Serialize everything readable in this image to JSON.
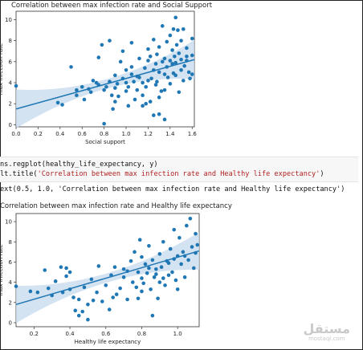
{
  "charts": [
    {
      "title": "Correlation between max infection rate and Social Support",
      "xlabel": "Social support",
      "ylabel": "max infection rate",
      "xticks": [
        "0.0",
        "0.2",
        "0.4",
        "0.6",
        "0.8",
        "1.0",
        "1.2",
        "1.4",
        "1.6"
      ],
      "yticks": [
        "0",
        "2",
        "4",
        "6",
        "8",
        "10"
      ]
    },
    {
      "title": "Correlation between max infection rate and Healthy life expectancy",
      "xlabel": "Healthy life expectancy",
      "ylabel": "max infection rate",
      "xticks": [
        "0.2",
        "0.4",
        "0.6",
        "0.8",
        "1.0"
      ],
      "yticks": [
        "0",
        "2",
        "4",
        "6",
        "8",
        "10"
      ]
    }
  ],
  "code": {
    "line1": "ns.regplot(healthy_life_expectancy, y)",
    "line2_prefix": "lt.title(",
    "line2_string": "'Correlation between max infection rate and Healthy life expectancy'",
    "line2_suffix": ")",
    "output": "ext(0.5, 1.0, 'Correlation between max infection rate and Healthy life expectancy')"
  },
  "watermark": {
    "main": "مستقل",
    "sub": "mostaql.com"
  },
  "colors": {
    "points": "#1f77b4",
    "ci_band": "#c9dcee"
  },
  "chart_data": [
    {
      "type": "scatter",
      "title": "Correlation between max infection rate and Social Support",
      "xlabel": "Social support",
      "ylabel": "max infection rate",
      "xlim": [
        0,
        1.62
      ],
      "ylim": [
        -0.2,
        10.8
      ],
      "regression": {
        "x": [
          0,
          1.62
        ],
        "y": [
          1.5,
          6.2
        ]
      },
      "points": [
        [
          0.0,
          3.7
        ],
        [
          0.38,
          2.1
        ],
        [
          0.42,
          1.9
        ],
        [
          0.5,
          5.5
        ],
        [
          0.55,
          2.8
        ],
        [
          0.55,
          3.3
        ],
        [
          0.6,
          3.6
        ],
        [
          0.62,
          2.4
        ],
        [
          0.66,
          3.4
        ],
        [
          0.7,
          4.2
        ],
        [
          0.73,
          4.0
        ],
        [
          0.75,
          3.8
        ],
        [
          0.75,
          6.4
        ],
        [
          0.78,
          7.6
        ],
        [
          0.8,
          3.3
        ],
        [
          0.82,
          3.6
        ],
        [
          0.85,
          4.1
        ],
        [
          0.85,
          8.0
        ],
        [
          0.87,
          2.8
        ],
        [
          0.88,
          1.5
        ],
        [
          0.9,
          2.2
        ],
        [
          0.9,
          3.5
        ],
        [
          0.9,
          4.7
        ],
        [
          0.93,
          2.7
        ],
        [
          0.95,
          6.0
        ],
        [
          0.97,
          4.4
        ],
        [
          0.97,
          7.0
        ],
        [
          1.0,
          3.2
        ],
        [
          1.0,
          4.0
        ],
        [
          1.0,
          5.2
        ],
        [
          1.02,
          1.8
        ],
        [
          1.02,
          3.6
        ],
        [
          1.05,
          5.5
        ],
        [
          1.05,
          7.8
        ],
        [
          1.07,
          4.1
        ],
        [
          1.08,
          2.4
        ],
        [
          1.1,
          3.3
        ],
        [
          1.1,
          4.6
        ],
        [
          1.12,
          6.3
        ],
        [
          1.15,
          1.8
        ],
        [
          1.15,
          4.0
        ],
        [
          1.15,
          2.8
        ],
        [
          1.17,
          5.4
        ],
        [
          1.18,
          3.6
        ],
        [
          1.2,
          4.2
        ],
        [
          1.2,
          6.1
        ],
        [
          1.2,
          7.2
        ],
        [
          1.22,
          2.2
        ],
        [
          1.22,
          6.5
        ],
        [
          1.23,
          4.4
        ],
        [
          1.25,
          5.2
        ],
        [
          1.25,
          8.1
        ],
        [
          1.27,
          3.8
        ],
        [
          1.28,
          6.7
        ],
        [
          1.28,
          4.1
        ],
        [
          1.3,
          1.0
        ],
        [
          1.3,
          5.0
        ],
        [
          1.3,
          7.4
        ],
        [
          1.3,
          2.6
        ],
        [
          1.32,
          3.2
        ],
        [
          1.33,
          6.0
        ],
        [
          1.33,
          9.4
        ],
        [
          1.35,
          4.8
        ],
        [
          1.35,
          6.3
        ],
        [
          1.35,
          0.5
        ],
        [
          1.37,
          5.5
        ],
        [
          1.37,
          7.9
        ],
        [
          1.38,
          4.5
        ],
        [
          1.4,
          6.1
        ],
        [
          1.4,
          8.5
        ],
        [
          1.4,
          3.9
        ],
        [
          1.42,
          5.8
        ],
        [
          1.42,
          7.1
        ],
        [
          1.43,
          9.1
        ],
        [
          1.44,
          6.5
        ],
        [
          1.45,
          4.7
        ],
        [
          1.45,
          5.9
        ],
        [
          1.46,
          7.6
        ],
        [
          1.47,
          9.0
        ],
        [
          1.48,
          3.1
        ],
        [
          1.48,
          6.8
        ],
        [
          1.5,
          5.2
        ],
        [
          1.5,
          6.2
        ],
        [
          1.5,
          8.0
        ],
        [
          1.52,
          4.2
        ],
        [
          1.52,
          9.1
        ],
        [
          1.53,
          5.6
        ],
        [
          1.55,
          7.3
        ],
        [
          1.55,
          6.1
        ],
        [
          1.57,
          5.0
        ],
        [
          1.58,
          4.4
        ],
        [
          1.6,
          6.6
        ],
        [
          1.6,
          8.2
        ],
        [
          1.45,
          10.2
        ],
        [
          1.35,
          3.3
        ],
        [
          1.27,
          5.8
        ],
        [
          1.18,
          2.0
        ],
        [
          1.05,
          4.8
        ],
        [
          0.92,
          3.9
        ],
        [
          0.68,
          3.1
        ],
        [
          1.12,
          4.5
        ],
        [
          1.43,
          4.9
        ],
        [
          1.55,
          6.5
        ],
        [
          1.25,
          0.9
        ],
        [
          0.8,
          0.1
        ],
        [
          1.6,
          4.8
        ]
      ]
    },
    {
      "type": "scatter",
      "title": "Correlation between max infection rate and Healthy life expectancy",
      "xlabel": "Healthy life expectancy",
      "ylabel": "max infection rate",
      "xlim": [
        0.1,
        1.12
      ],
      "ylim": [
        -0.4,
        10.8
      ],
      "regression": {
        "x": [
          0.1,
          1.12
        ],
        "y": [
          1.8,
          7.1
        ]
      },
      "points": [
        [
          0.1,
          3.6
        ],
        [
          0.18,
          3.1
        ],
        [
          0.22,
          3.0
        ],
        [
          0.26,
          5.2
        ],
        [
          0.28,
          3.4
        ],
        [
          0.3,
          2.7
        ],
        [
          0.32,
          4.1
        ],
        [
          0.35,
          5.5
        ],
        [
          0.36,
          3.0
        ],
        [
          0.38,
          4.6
        ],
        [
          0.38,
          5.4
        ],
        [
          0.4,
          3.3
        ],
        [
          0.4,
          5.0
        ],
        [
          0.42,
          2.5
        ],
        [
          0.43,
          1.2
        ],
        [
          0.45,
          2.3
        ],
        [
          0.45,
          0.7
        ],
        [
          0.47,
          1.1
        ],
        [
          0.48,
          3.5
        ],
        [
          0.5,
          1.8
        ],
        [
          0.5,
          0.3
        ],
        [
          0.52,
          4.3
        ],
        [
          0.53,
          2.2
        ],
        [
          0.55,
          3.0
        ],
        [
          0.56,
          5.6
        ],
        [
          0.58,
          2.1
        ],
        [
          0.6,
          3.7
        ],
        [
          0.62,
          1.3
        ],
        [
          0.63,
          4.7
        ],
        [
          0.65,
          5.5
        ],
        [
          0.66,
          2.8
        ],
        [
          0.68,
          3.4
        ],
        [
          0.7,
          4.5
        ],
        [
          0.72,
          5.1
        ],
        [
          0.72,
          2.3
        ],
        [
          0.74,
          6.1
        ],
        [
          0.75,
          4.0
        ],
        [
          0.76,
          7.0
        ],
        [
          0.77,
          3.5
        ],
        [
          0.78,
          5.0
        ],
        [
          0.79,
          8.2
        ],
        [
          0.8,
          4.4
        ],
        [
          0.8,
          6.5
        ],
        [
          0.81,
          3.9
        ],
        [
          0.82,
          5.8
        ],
        [
          0.83,
          4.9
        ],
        [
          0.84,
          7.6
        ],
        [
          0.85,
          3.3
        ],
        [
          0.86,
          6.2
        ],
        [
          0.86,
          0.7
        ],
        [
          0.87,
          4.5
        ],
        [
          0.88,
          5.3
        ],
        [
          0.89,
          2.4
        ],
        [
          0.9,
          6.8
        ],
        [
          0.9,
          4.0
        ],
        [
          0.91,
          5.5
        ],
        [
          0.92,
          8.0
        ],
        [
          0.93,
          3.7
        ],
        [
          0.94,
          6.1
        ],
        [
          0.95,
          4.7
        ],
        [
          0.96,
          7.3
        ],
        [
          0.97,
          5.0
        ],
        [
          0.98,
          9.2
        ],
        [
          0.99,
          4.2
        ],
        [
          1.0,
          6.6
        ],
        [
          1.0,
          3.3
        ],
        [
          1.01,
          8.4
        ],
        [
          1.02,
          5.8
        ],
        [
          1.03,
          7.0
        ],
        [
          1.04,
          4.5
        ],
        [
          1.05,
          9.6
        ],
        [
          1.06,
          6.2
        ],
        [
          1.07,
          10.3
        ],
        [
          1.08,
          7.5
        ],
        [
          1.09,
          5.4
        ],
        [
          1.1,
          8.8
        ],
        [
          1.1,
          6.9
        ],
        [
          1.11,
          7.7
        ],
        [
          0.84,
          5.4
        ],
        [
          0.8,
          3.1
        ],
        [
          0.78,
          2.4
        ],
        [
          0.88,
          4.8
        ],
        [
          0.95,
          5.9
        ],
        [
          0.7,
          5.3
        ],
        [
          0.64,
          2.5
        ],
        [
          0.98,
          6.3
        ],
        [
          0.92,
          4.4
        ],
        [
          1.04,
          6.6
        ]
      ]
    }
  ]
}
